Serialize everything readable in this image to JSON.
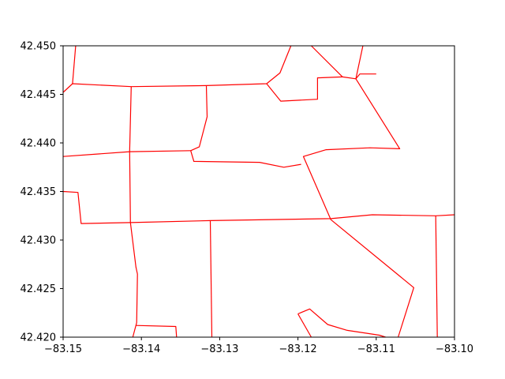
{
  "chart_data": {
    "type": "line",
    "title": "",
    "xlabel": "",
    "ylabel": "",
    "xlim": [
      -83.15,
      -83.1
    ],
    "ylim": [
      42.42,
      42.45
    ],
    "x_ticks": [
      -83.15,
      -83.14,
      -83.13,
      -83.12,
      -83.11,
      -83.1
    ],
    "x_tick_labels": [
      "−83.15",
      "−83.14",
      "−83.13",
      "−83.12",
      "−83.11",
      "−83.10"
    ],
    "y_ticks": [
      42.42,
      42.425,
      42.43,
      42.435,
      42.44,
      42.445,
      42.45
    ],
    "y_tick_labels": [
      "42.420",
      "42.425",
      "42.430",
      "42.435",
      "42.440",
      "42.445",
      "42.450"
    ],
    "grid": false,
    "line_color": "#ff0000",
    "series": [
      {
        "x": [
          -83.1484,
          -83.1488
        ],
        "y": [
          42.45,
          42.4461
        ]
      },
      {
        "x": [
          -83.15,
          -83.1488,
          -83.1413,
          -83.1317,
          -83.124,
          -83.1223,
          -83.1209
        ],
        "y": [
          42.4452,
          42.4461,
          42.4458,
          42.4459,
          42.4461,
          42.4472,
          42.45
        ]
      },
      {
        "x": [
          -83.124,
          -83.1222,
          -83.1175,
          -83.1175,
          -83.1143,
          -83.1183
        ],
        "y": [
          42.4461,
          42.4443,
          42.4445,
          42.4467,
          42.4468,
          42.45
        ]
      },
      {
        "x": [
          -83.1143,
          -83.1126,
          -83.1121,
          -83.11
        ],
        "y": [
          42.4468,
          42.4466,
          42.4471,
          42.4471
        ]
      },
      {
        "x": [
          -83.1126,
          -83.1117
        ],
        "y": [
          42.4466,
          42.45
        ]
      },
      {
        "x": [
          -83.1126,
          -83.107,
          -83.1108,
          -83.1164,
          -83.1193,
          -83.1158,
          -83.1052,
          -83.1072
        ],
        "y": [
          42.4466,
          42.4394,
          42.4395,
          42.4393,
          42.4386,
          42.4321,
          42.4251,
          42.42
        ]
      },
      {
        "x": [
          -83.1317,
          -83.1316,
          -83.1326,
          -83.1337,
          -83.1333,
          -83.1249,
          -83.1218,
          -83.1196
        ],
        "y": [
          42.4459,
          42.4427,
          42.4396,
          42.4392,
          42.4381,
          42.438,
          42.4375,
          42.4378
        ]
      },
      {
        "x": [
          -83.15,
          -83.1415,
          -83.1337
        ],
        "y": [
          42.4386,
          42.4391,
          42.4392
        ]
      },
      {
        "x": [
          -83.1413,
          -83.1415,
          -83.1414,
          -83.1407,
          -83.1405,
          -83.1406,
          -83.1411
        ],
        "y": [
          42.4458,
          42.4391,
          42.4318,
          42.4272,
          42.4265,
          42.4215,
          42.42
        ]
      },
      {
        "x": [
          -83.15,
          -83.1481,
          -83.1477,
          -83.1414,
          -83.1312,
          -83.1158,
          -83.1105,
          -83.1024,
          -83.1
        ],
        "y": [
          42.435,
          42.4349,
          42.4317,
          42.4318,
          42.432,
          42.4322,
          42.4326,
          42.4325,
          42.4326
        ]
      },
      {
        "x": [
          -83.1312,
          -83.131
        ],
        "y": [
          42.432,
          42.42
        ]
      },
      {
        "x": [
          -83.1024,
          -83.1022
        ],
        "y": [
          42.4325,
          42.42
        ]
      },
      {
        "x": [
          -83.1407,
          -83.1356,
          -83.1355
        ],
        "y": [
          42.4212,
          42.4211,
          42.42
        ]
      },
      {
        "x": [
          -83.12,
          -83.1185,
          -83.1162,
          -83.1137,
          -83.1096,
          -83.1088
        ],
        "y": [
          42.4224,
          42.4229,
          42.4213,
          42.4207,
          42.4202,
          42.42
        ]
      },
      {
        "x": [
          -83.12,
          -83.1183
        ],
        "y": [
          42.4224,
          42.42
        ]
      }
    ]
  }
}
